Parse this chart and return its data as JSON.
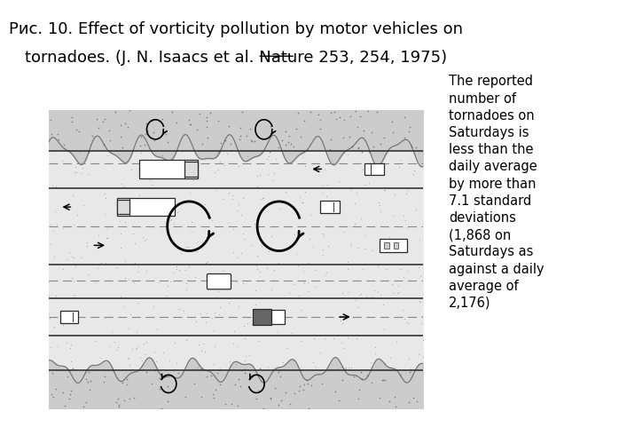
{
  "title_line1": "Рис. 10. Effect of vorticity pollution by motor vehicles on",
  "title_line2_pre": "tornadoes. (J. N. Isaacs et al. Nature ",
  "title_line2_num": "253",
  "title_line2_post": ", 254, 1975)",
  "sidebar_text": "The reported\nnumber of\ntornadoes on\nSaturdays is\nless than the\ndaily average\nby more than\n7.1 standard\ndeviations\n(1,868 on\nSaturdays as\nagainst a daily\naverage of\n2,176)",
  "bg_color": "#ffffff",
  "gravel_color": "#cccccc",
  "road_color": "#e8e8e8",
  "title_fontsize": 13,
  "sidebar_fontsize": 10.5
}
